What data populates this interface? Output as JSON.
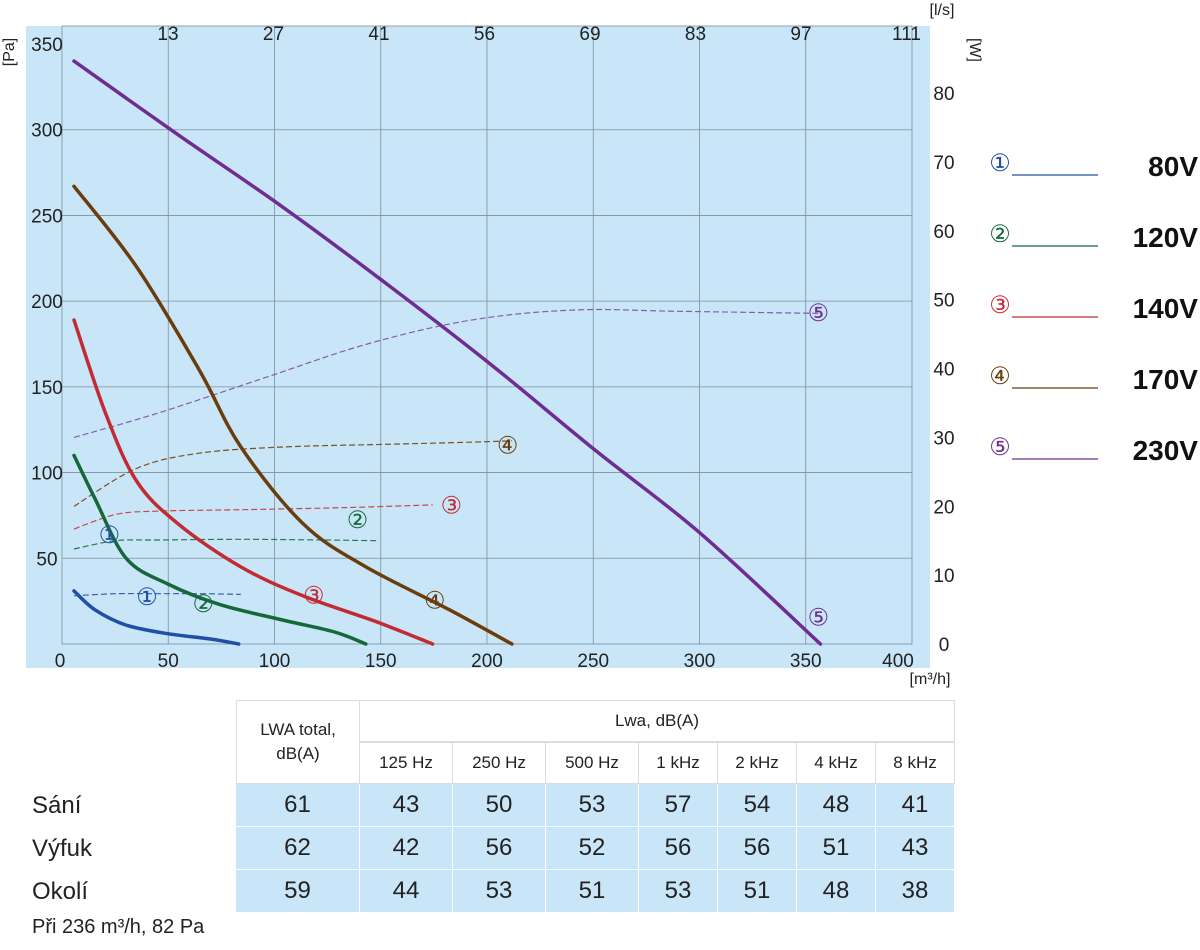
{
  "chart_data": {
    "type": "line",
    "x_axis": {
      "label": "[m³/h]",
      "range": [
        0,
        400
      ],
      "ticks": [
        0,
        50,
        100,
        150,
        200,
        250,
        300,
        350,
        400
      ]
    },
    "x2_axis": {
      "label": "[l/s]",
      "ticks": [
        13,
        27,
        41,
        56,
        69,
        83,
        97,
        111
      ]
    },
    "y_axis": {
      "label": "[Pa]",
      "range": [
        0,
        350
      ],
      "ticks": [
        50,
        100,
        150,
        200,
        250,
        300,
        350
      ]
    },
    "y2_axis": {
      "label": "[W]",
      "range": [
        0,
        85
      ],
      "ticks": [
        0,
        10,
        20,
        30,
        40,
        50,
        60,
        70,
        80
      ]
    },
    "grid": true,
    "legend_position": "right",
    "pressure_series": [
      {
        "id": "1",
        "color": "#1f4fa6",
        "points": [
          [
            0,
            31
          ],
          [
            10,
            20
          ],
          [
            25,
            11
          ],
          [
            45,
            6
          ],
          [
            65,
            3
          ],
          [
            79,
            0
          ]
        ]
      },
      {
        "id": "2",
        "color": "#16683a",
        "points": [
          [
            0,
            110
          ],
          [
            10,
            85
          ],
          [
            25,
            50
          ],
          [
            45,
            35
          ],
          [
            70,
            23
          ],
          [
            100,
            14
          ],
          [
            125,
            7
          ],
          [
            140,
            0
          ]
        ]
      },
      {
        "id": "3",
        "color": "#c12b33",
        "points": [
          [
            0,
            189
          ],
          [
            15,
            135
          ],
          [
            30,
            95
          ],
          [
            50,
            70
          ],
          [
            80,
            45
          ],
          [
            110,
            28
          ],
          [
            145,
            13
          ],
          [
            172,
            0
          ]
        ]
      },
      {
        "id": "4",
        "color": "#6a3d0c",
        "points": [
          [
            0,
            267
          ],
          [
            30,
            220
          ],
          [
            60,
            160
          ],
          [
            80,
            115
          ],
          [
            110,
            70
          ],
          [
            140,
            45
          ],
          [
            180,
            20
          ],
          [
            210,
            0
          ]
        ]
      },
      {
        "id": "5",
        "color": "#6f2d91",
        "points": [
          [
            0,
            340
          ],
          [
            50,
            297
          ],
          [
            100,
            255
          ],
          [
            150,
            210
          ],
          [
            200,
            163
          ],
          [
            250,
            113
          ],
          [
            300,
            65
          ],
          [
            358,
            0
          ]
        ]
      }
    ],
    "power_series": [
      {
        "id": "1",
        "color": "#3e5fa8",
        "points": [
          [
            0,
            7
          ],
          [
            20,
            7.3
          ],
          [
            40,
            7.3
          ],
          [
            60,
            7.3
          ],
          [
            80,
            7.2
          ]
        ]
      },
      {
        "id": "2",
        "color": "#2a7a4a",
        "points": [
          [
            0,
            13.8
          ],
          [
            20,
            15
          ],
          [
            40,
            15.1
          ],
          [
            80,
            15.2
          ],
          [
            120,
            15.1
          ],
          [
            145,
            15
          ]
        ]
      },
      {
        "id": "3",
        "color": "#c8464e",
        "points": [
          [
            0,
            16.7
          ],
          [
            20,
            18.8
          ],
          [
            40,
            19.3
          ],
          [
            80,
            19.5
          ],
          [
            130,
            19.8
          ],
          [
            172,
            20.2
          ]
        ]
      },
      {
        "id": "4",
        "color": "#7a5226",
        "points": [
          [
            0,
            20
          ],
          [
            30,
            25.5
          ],
          [
            60,
            27.7
          ],
          [
            100,
            28.6
          ],
          [
            150,
            29
          ],
          [
            190,
            29.3
          ],
          [
            210,
            29.5
          ]
        ]
      },
      {
        "id": "5",
        "color": "#8a5bab",
        "points": [
          [
            0,
            30
          ],
          [
            40,
            33.5
          ],
          [
            90,
            38.5
          ],
          [
            140,
            43.5
          ],
          [
            190,
            47
          ],
          [
            240,
            48.5
          ],
          [
            290,
            48.3
          ],
          [
            358,
            48
          ]
        ]
      }
    ],
    "curve_markers": [
      {
        "text": "①",
        "color": "#1f4fa6",
        "x": 35,
        "y": 28
      },
      {
        "text": "②",
        "color": "#16683a",
        "x": 62,
        "y": 24
      },
      {
        "text": "③",
        "color": "#c12b33",
        "x": 115,
        "y": 29
      },
      {
        "text": "④",
        "color": "#6a3d0c",
        "x": 173,
        "y": 26
      },
      {
        "text": "⑤",
        "color": "#6f2d91",
        "x": 357,
        "y": 16
      },
      {
        "text": "①",
        "color": "#1f4fa6",
        "x": 17,
        "y": 68
      },
      {
        "text": "②",
        "color": "#16683a",
        "x": 136,
        "y": 77
      },
      {
        "text": "③",
        "color": "#c12b33",
        "x": 181,
        "y": 86
      },
      {
        "text": "④",
        "color": "#6a3d0c",
        "x": 208,
        "y": 123
      },
      {
        "text": "⑤",
        "color": "#6f2d91",
        "x": 357,
        "y": 205
      }
    ],
    "legend": [
      {
        "symbol": "①",
        "label": "80V",
        "color": "#1f4fa6"
      },
      {
        "symbol": "②",
        "label": "120V",
        "color": "#16683a"
      },
      {
        "symbol": "③",
        "label": "140V",
        "color": "#c12b33"
      },
      {
        "symbol": "④",
        "label": "170V",
        "color": "#6a3d0c"
      },
      {
        "symbol": "⑤",
        "label": "230V",
        "color": "#6f2d91"
      }
    ],
    "colors": {
      "plot_background": "#c8e6f7",
      "grid": "#7f8f99"
    }
  },
  "sound_table": {
    "header_total_main": "LWA",
    "header_total_rest": "total,",
    "header_total_unit": "dB(A)",
    "header_group": "Lwa, dB(A)",
    "frequencies": [
      "125 Hz",
      "250 Hz",
      "500 Hz",
      "1 kHz",
      "2 kHz",
      "4 kHz",
      "8 kHz"
    ],
    "rows": [
      {
        "label": "Sání",
        "total": "61",
        "values": [
          "43",
          "50",
          "53",
          "57",
          "54",
          "48",
          "41"
        ]
      },
      {
        "label": "Výfuk",
        "total": "62",
        "values": [
          "42",
          "56",
          "52",
          "56",
          "56",
          "51",
          "43"
        ]
      },
      {
        "label": "Okolí",
        "total": "59",
        "values": [
          "44",
          "53",
          "51",
          "53",
          "51",
          "48",
          "38"
        ]
      }
    ]
  },
  "footnote": "Při 236 m³/h, 82 Pa"
}
